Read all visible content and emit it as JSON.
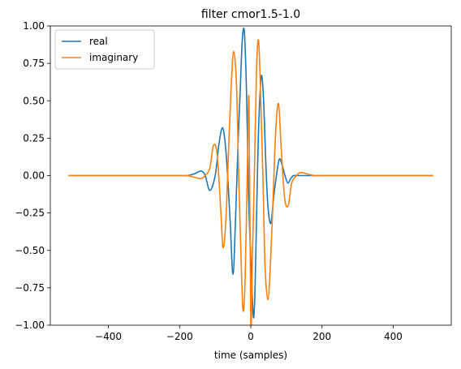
{
  "chart_data": {
    "type": "line",
    "title": "filter cmor1.5-1.0",
    "xlabel": "time (samples)",
    "ylabel": "",
    "xlim": [
      -563,
      563
    ],
    "ylim": [
      -1.0,
      1.0
    ],
    "xticks": [
      -400,
      -200,
      0,
      200,
      400
    ],
    "xtick_labels": [
      "−400",
      "−200",
      "0",
      "200",
      "400"
    ],
    "yticks": [
      -1.0,
      -0.75,
      -0.5,
      -0.25,
      0.0,
      0.25,
      0.5,
      0.75,
      1.0
    ],
    "ytick_labels": [
      "−1.00",
      "−0.75",
      "−0.50",
      "−0.25",
      "0.00",
      "0.25",
      "0.50",
      "0.75",
      "1.00"
    ],
    "legend_position": "top-left",
    "grid": false,
    "series": [
      {
        "name": "real",
        "color": "#1f77b4",
        "x": [
          -512,
          -200,
          -180,
          -160,
          -140,
          -128,
          -115,
          -100,
          -90,
          -80,
          -72,
          -65,
          -58,
          -50,
          -43,
          -36,
          -30,
          -24,
          -18,
          -12,
          -6,
          0,
          4,
          8,
          12,
          16,
          20,
          24,
          30,
          36,
          42,
          48,
          56,
          64,
          72,
          80,
          88,
          96,
          104,
          112,
          120,
          128,
          136,
          144,
          152,
          160,
          170,
          180,
          200,
          512
        ],
        "y": [
          0.0,
          0.0,
          0.0,
          0.01,
          0.03,
          0.0,
          -0.1,
          0.0,
          0.2,
          0.32,
          0.22,
          0.0,
          -0.3,
          -0.66,
          -0.3,
          0.2,
          0.55,
          0.9,
          0.96,
          0.55,
          -0.15,
          -0.55,
          -0.8,
          -0.95,
          -0.75,
          -0.3,
          0.15,
          0.45,
          0.67,
          0.5,
          0.1,
          -0.2,
          -0.32,
          -0.15,
          0.0,
          0.11,
          0.07,
          0.0,
          -0.05,
          -0.02,
          0.0,
          0.0,
          0.0,
          0.0,
          0.0,
          0.0,
          0.0,
          0.0,
          0.0,
          0.0
        ]
      },
      {
        "name": "imaginary",
        "color": "#ff7f0e",
        "x": [
          -512,
          -200,
          -180,
          -160,
          -140,
          -128,
          -115,
          -105,
          -95,
          -85,
          -78,
          -70,
          -62,
          -55,
          -48,
          -40,
          -34,
          -28,
          -22,
          -16,
          -10,
          -5,
          0,
          5,
          10,
          16,
          22,
          28,
          34,
          40,
          48,
          55,
          62,
          70,
          78,
          85,
          95,
          105,
          115,
          128,
          140,
          160,
          180,
          200,
          512
        ],
        "y": [
          0.0,
          0.0,
          0.0,
          -0.01,
          -0.02,
          0.0,
          0.05,
          0.2,
          0.15,
          -0.2,
          -0.48,
          -0.3,
          0.2,
          0.6,
          0.83,
          0.6,
          0.0,
          -0.5,
          -0.9,
          -0.7,
          0.0,
          0.5,
          -1.0,
          -0.5,
          0.0,
          0.7,
          0.9,
          0.5,
          0.0,
          -0.6,
          -0.83,
          -0.6,
          -0.2,
          0.3,
          0.48,
          0.2,
          -0.15,
          -0.2,
          -0.05,
          0.0,
          0.02,
          0.01,
          0.0,
          0.0,
          0.0
        ]
      }
    ]
  }
}
